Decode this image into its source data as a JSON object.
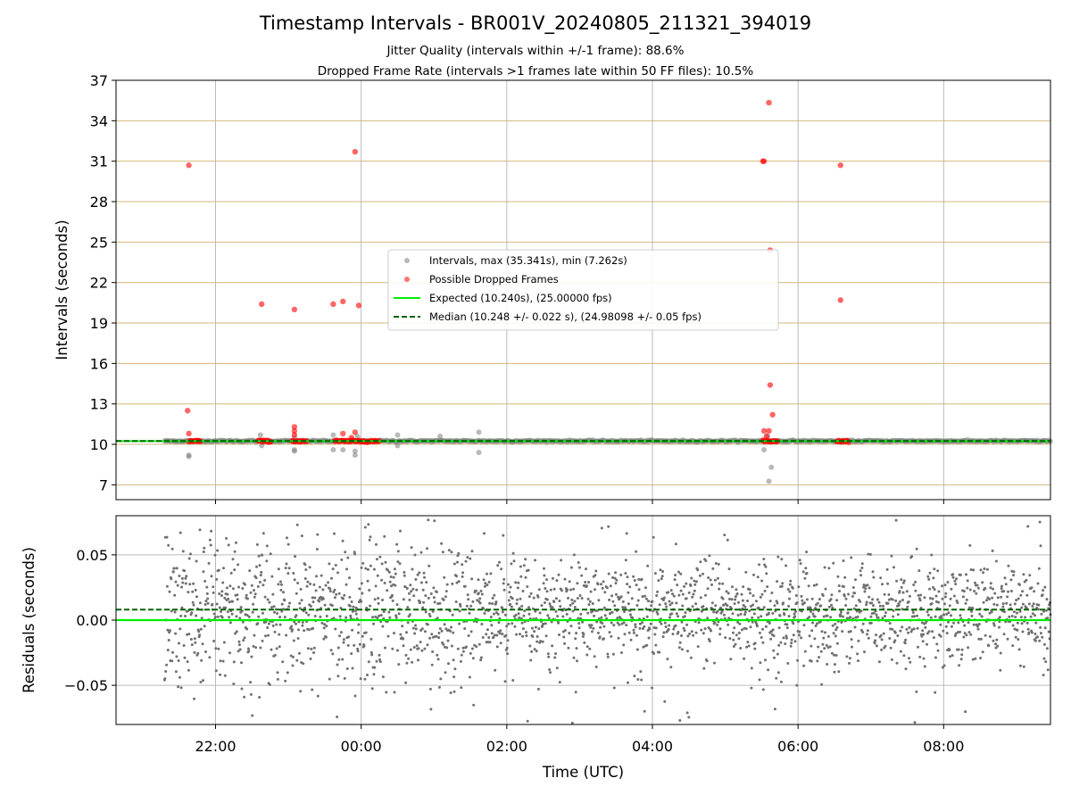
{
  "chart_data": [
    {
      "type": "scatter",
      "title": "Timestamp Intervals - BR001V_20240805_211321_394019",
      "subtitle_lines": [
        "Jitter Quality (intervals within +/-1 frame): 88.6%",
        "Dropped Frame Rate (intervals >1 frames late within 50 FF files): 10.5%"
      ],
      "xlabel": "",
      "ylabel": "Intervals (seconds)",
      "xlim": [
        "20:38",
        "09:28"
      ],
      "ylim": [
        5.9,
        37
      ],
      "yticks": [
        7,
        10,
        13,
        16,
        19,
        22,
        25,
        28,
        31,
        34,
        37
      ],
      "xticks": [
        "22:00",
        "00:00",
        "02:00",
        "04:00",
        "06:00",
        "08:00"
      ],
      "grid": true,
      "grid_colors": {
        "horizontal": "#d4b87a",
        "vertical": "#bbbbbb"
      },
      "legend_position": "center",
      "legend": [
        "Intervals, max (35.341s), min (7.262s)",
        "Possible Dropped Frames",
        "Expected (10.240s), (25.00000 fps)",
        "Median (10.248 +/- 0.022 s), (24.98098 +/- 0.05 fps)"
      ],
      "colors": {
        "intervals": "#808080",
        "dropped": "#ff0000",
        "expected": "#00ee00",
        "median": "#006400"
      },
      "expected_y": 10.24,
      "median_y": 10.248,
      "series": [
        {
          "name": "Intervals, max (35.341s), min (7.262s)",
          "points": [
            [
              "21:38",
              9.2
            ],
            [
              "21:38",
              9.1
            ],
            [
              "22:37",
              10.7
            ],
            [
              "22:38",
              9.9
            ],
            [
              "23:05",
              9.6
            ],
            [
              "23:05",
              9.5
            ],
            [
              "23:05",
              10.5
            ],
            [
              "23:37",
              10.7
            ],
            [
              "23:37",
              9.6
            ],
            [
              "23:45",
              9.6
            ],
            [
              "23:55",
              9.2
            ],
            [
              "23:55",
              9.5
            ],
            [
              "23:57",
              10.6
            ],
            [
              "00:30",
              10.7
            ],
            [
              "00:30",
              9.9
            ],
            [
              "01:05",
              10.6
            ],
            [
              "01:37",
              10.9
            ],
            [
              "01:37",
              9.4
            ],
            [
              "05:32",
              9.6
            ],
            [
              "05:38",
              8.3
            ],
            [
              "05:36",
              7.262
            ],
            [
              "05:35",
              10.6
            ]
          ]
        },
        {
          "name": "Possible Dropped Frames",
          "points": [
            [
              "21:38",
              30.7
            ],
            [
              "21:37",
              12.5
            ],
            [
              "21:38",
              10.8
            ],
            [
              "22:38",
              20.4
            ],
            [
              "23:05",
              20.0
            ],
            [
              "23:05",
              11.3
            ],
            [
              "23:05",
              11.0
            ],
            [
              "23:05",
              10.7
            ],
            [
              "23:37",
              20.4
            ],
            [
              "23:45",
              20.6
            ],
            [
              "23:55",
              31.7
            ],
            [
              "23:58",
              20.3
            ],
            [
              "23:45",
              10.8
            ],
            [
              "23:55",
              10.9
            ],
            [
              "23:52",
              10.5
            ],
            [
              "05:31",
              31.0
            ],
            [
              "05:32",
              31.0
            ],
            [
              "05:36",
              35.341
            ],
            [
              "05:37",
              24.4
            ],
            [
              "05:37",
              14.4
            ],
            [
              "05:39",
              12.2
            ],
            [
              "05:36",
              11.0
            ],
            [
              "05:32",
              11.0
            ],
            [
              "05:34",
              10.6
            ],
            [
              "06:35",
              30.7
            ],
            [
              "06:35",
              20.7
            ]
          ],
          "runs": [
            [
              "21:38",
              "21:48",
              10.24
            ],
            [
              "22:35",
              "22:46",
              10.24
            ],
            [
              "23:03",
              "23:15",
              10.24
            ],
            [
              "23:38",
              "00:15",
              10.24
            ],
            [
              "05:31",
              "05:43",
              10.24
            ],
            [
              "06:32",
              "06:42",
              10.24
            ]
          ]
        }
      ]
    },
    {
      "type": "scatter",
      "title": "",
      "xlabel": "Time (UTC)",
      "ylabel": "Residuals (seconds)",
      "xlim": [
        "20:38",
        "09:28"
      ],
      "ylim": [
        -0.08,
        0.08
      ],
      "yticks": [
        0.05,
        0.0,
        -0.05
      ],
      "ytick_labels": [
        "0.05",
        "0.00",
        "−0.05"
      ],
      "xticks": [
        "22:00",
        "00:00",
        "02:00",
        "04:00",
        "06:00",
        "08:00"
      ],
      "grid": true,
      "expected_y": 0.0,
      "median_y": 0.008,
      "series": [
        {
          "name": "",
          "time_range": [
            "21:18",
            "09:28"
          ],
          "value_range": [
            -0.08,
            0.08
          ],
          "description_note": "dense scatter of residual points around 0.005 with sparse outliers"
        }
      ]
    }
  ]
}
